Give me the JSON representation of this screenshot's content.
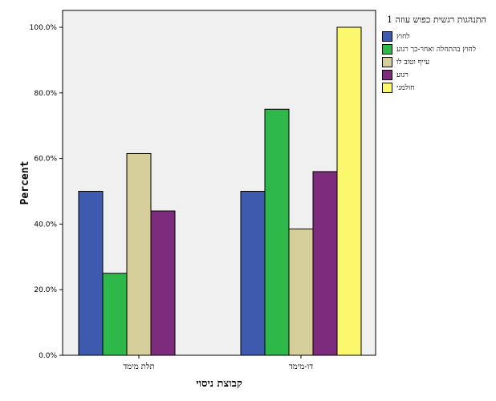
{
  "chart_data": {
    "type": "bar",
    "categories": [
      "תלת מימד",
      "דו-מימד"
    ],
    "series": [
      {
        "name": "לחוץ",
        "color": "#3d5aae",
        "values": [
          50,
          50
        ]
      },
      {
        "name": "לחוץ בהתחלה ואחר-כך רגוע",
        "color": "#2fb84a",
        "values": [
          25,
          75
        ]
      },
      {
        "name": "עייף וטוב לו",
        "color": "#d6cf9b",
        "values": [
          61.5,
          38.5
        ]
      },
      {
        "name": "רגוע",
        "color": "#7d2b7c",
        "values": [
          44,
          56
        ]
      },
      {
        "name": "חולמני",
        "color": "#fbf86d",
        "values": [
          0,
          100
        ]
      }
    ],
    "yticks": [
      "0.0%",
      "20.0%",
      "40.0%",
      "60.0%",
      "80.0%",
      "100.0%"
    ],
    "ylim": [
      0,
      100
    ],
    "ylabel": "Percent",
    "xlabel": "קבוצת ניסוי",
    "legend_title": "התנהגות רגשית כפוש עוזה 1",
    "legend_placement": "right",
    "plot_background": "#f0f0f0"
  }
}
